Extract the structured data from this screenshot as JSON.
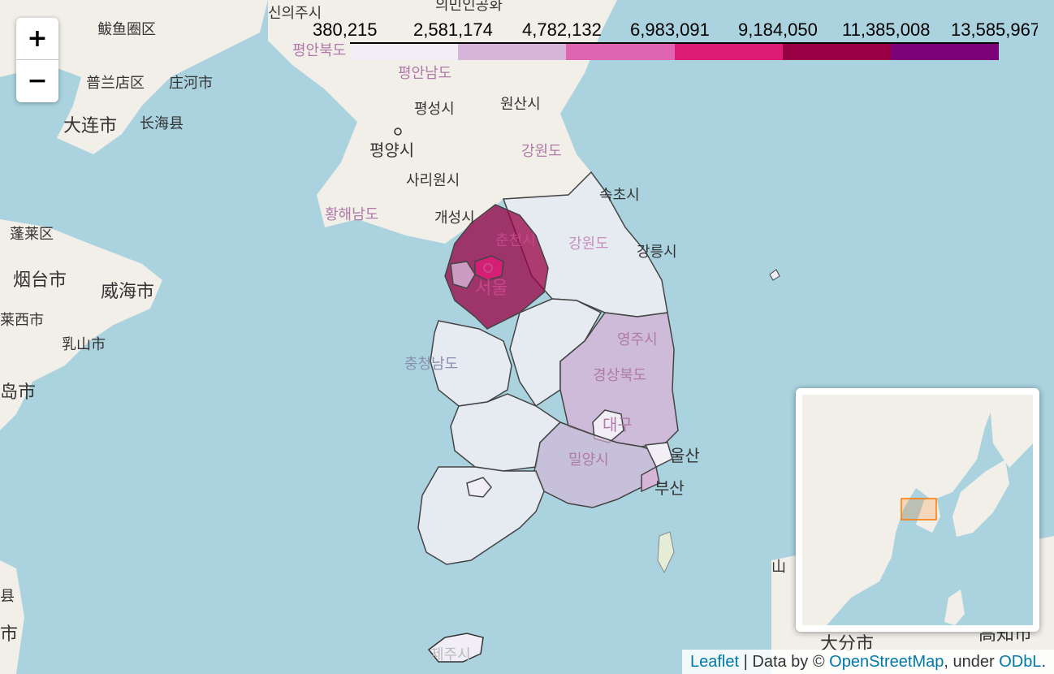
{
  "zoom": {
    "in_label": "+",
    "out_label": "−"
  },
  "legend": {
    "ticks": [
      "380,215",
      "2,581,174",
      "4,782,132",
      "6,983,091",
      "9,184,050",
      "11,385,008",
      "13,585,967"
    ],
    "colors": [
      "#f1eef6",
      "#d7b5d8",
      "#df65b0",
      "#dd1c77",
      "#980043",
      "#7a0177"
    ]
  },
  "map_labels": {
    "sinuiju": "신의주시",
    "korea_top": "의민인공화",
    "pyeongbuk": "평안북도",
    "pyeongnam": "평안남도",
    "pyeongseong": "평성시",
    "wonsan": "원산시",
    "pyongyang": "평양시",
    "gangwon_north": "강원도",
    "sariwon": "사리원시",
    "hwanghae": "황해남도",
    "kaesong": "개성시",
    "sokcho": "속초시",
    "chuncheon": "춘천시",
    "gangwon_south": "강원도",
    "gangneung": "강릉시",
    "seoul": "서울",
    "yeongju": "영주시",
    "gyeongbuk": "경상북도",
    "chungnam": "충청남도",
    "daegu": "대구",
    "ulsan": "울산",
    "miryang": "밀양시",
    "busan": "부산",
    "jeju": "제주시",
    "dalian": "大连市",
    "changhai": "长海县",
    "zhuanghe": "庄河市",
    "pulandian": "普兰店区",
    "bayuquan": "鲅鱼圈区",
    "penglai": "蓬莱区",
    "yantai": "烟台市",
    "weihai": "威海市",
    "rushan": "乳山市",
    "laixi": "莱西市",
    "qingdao": "岛市",
    "left_xian": "县",
    "left_shi": "市",
    "shan": "山",
    "oita": "大分市",
    "kochi": "高知市"
  },
  "attribution": {
    "leaflet": "Leaflet",
    "sep": " | Data by © ",
    "osm": "OpenStreetMap",
    "under": ", under ",
    "odbl": "ODbL",
    "end": "."
  }
}
